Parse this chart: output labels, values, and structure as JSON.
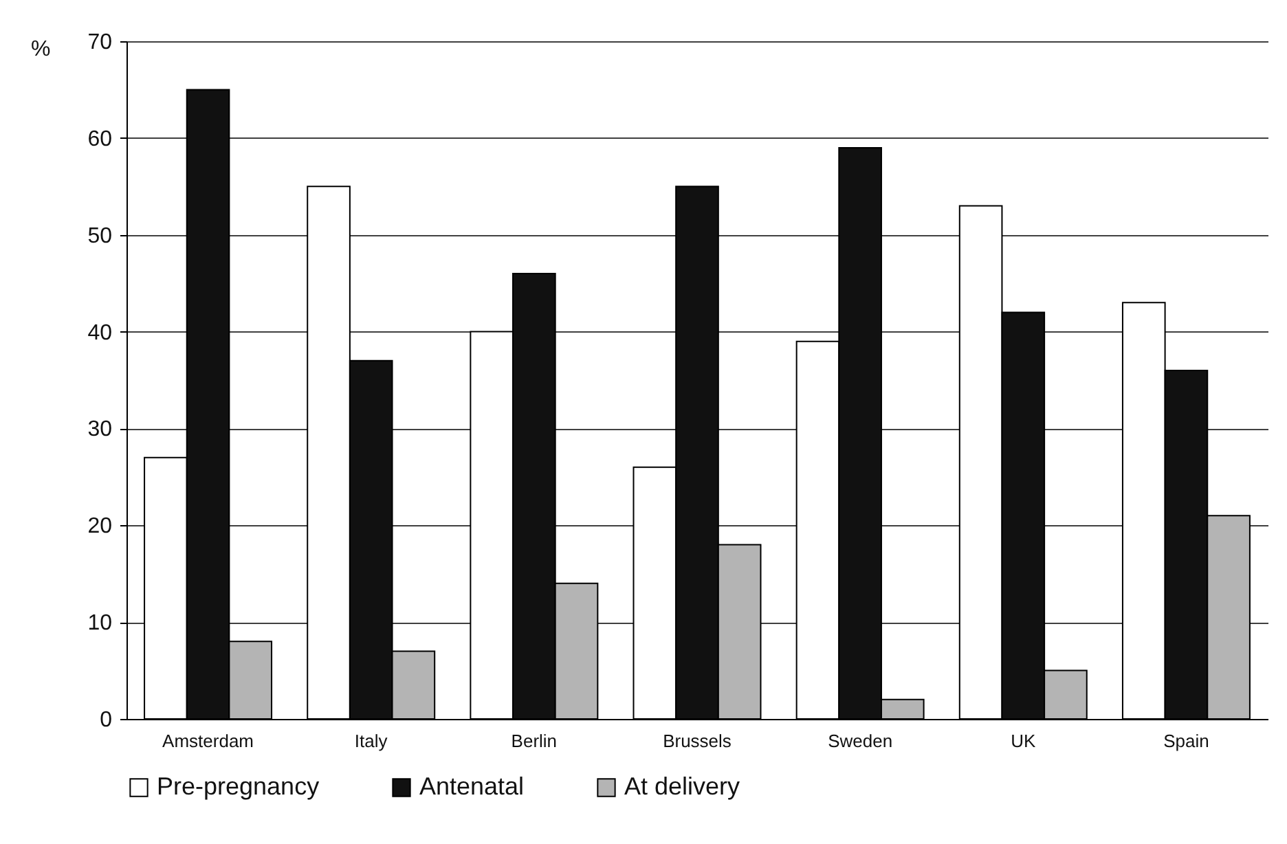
{
  "chart_data": {
    "type": "bar",
    "ylabel": "%",
    "categories": [
      "Amsterdam",
      "Italy",
      "Berlin",
      "Brussels",
      "Sweden",
      "UK",
      "Spain"
    ],
    "series": [
      {
        "name": "Pre-pregnancy",
        "color": "#ffffff",
        "values": [
          27,
          55,
          40,
          26,
          39,
          53,
          43
        ]
      },
      {
        "name": "Antenatal",
        "color": "#111111",
        "values": [
          65,
          37,
          46,
          55,
          59,
          42,
          36
        ]
      },
      {
        "name": "At delivery",
        "color": "#b4b4b4",
        "values": [
          8,
          7,
          14,
          18,
          2,
          5,
          21
        ]
      }
    ],
    "ylim": [
      0,
      70
    ],
    "yticks": [
      0,
      10,
      20,
      30,
      40,
      50,
      60,
      70
    ],
    "grid": "y",
    "legend": "bottom"
  }
}
